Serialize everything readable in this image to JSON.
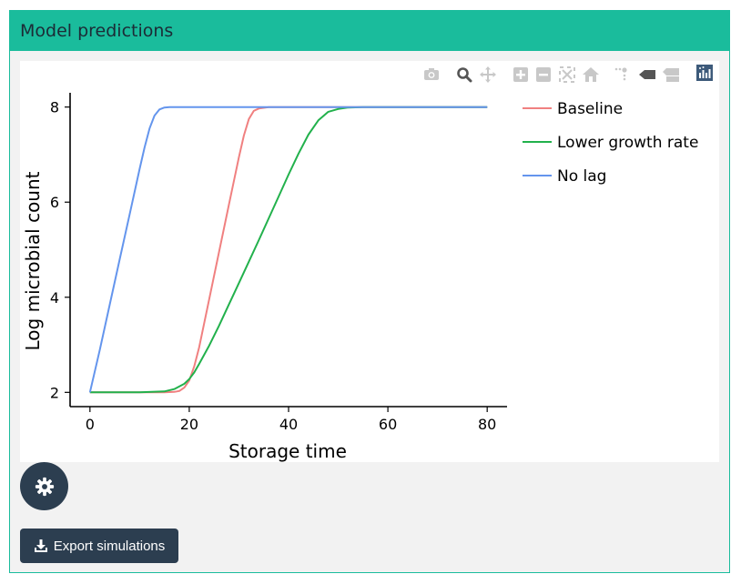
{
  "panel": {
    "title": "Model predictions",
    "header_color": "#1abc9c"
  },
  "modebar": {
    "icons": [
      "camera-icon",
      "zoom-icon",
      "pan-icon",
      "zoom-in-icon",
      "zoom-out-icon",
      "autoscale-icon",
      "reset-axes-icon",
      "spike-lines-icon",
      "hover-closest-icon",
      "hover-compare-icon",
      "plotly-logo-icon"
    ]
  },
  "buttons": {
    "settings_icon": "gear-icon",
    "export_label": "Export simulations",
    "export_icon": "download-icon"
  },
  "chart_data": {
    "type": "line",
    "title": "",
    "xlabel": "Storage time",
    "ylabel": "Log microbial count",
    "xlim": [
      -4,
      84
    ],
    "ylim": [
      1.7,
      8.3
    ],
    "xticks": [
      0,
      20,
      40,
      60,
      80
    ],
    "yticks": [
      2,
      4,
      6,
      8
    ],
    "grid": false,
    "legend_position": "right",
    "series": [
      {
        "name": "Baseline",
        "color": "#f08080",
        "x": [
          0,
          5,
          10,
          15,
          17,
          18,
          19,
          20,
          21,
          22,
          24,
          26,
          28,
          30,
          31,
          32,
          33,
          34,
          36,
          40,
          50,
          60,
          70,
          80
        ],
        "y": [
          2.0,
          2.0,
          2.0,
          2.0,
          2.01,
          2.03,
          2.1,
          2.25,
          2.55,
          2.95,
          3.95,
          4.95,
          5.95,
          6.95,
          7.4,
          7.75,
          7.92,
          7.97,
          8.0,
          8.0,
          8.0,
          8.0,
          8.0,
          8.0
        ]
      },
      {
        "name": "Lower growth rate",
        "color": "#22b14c",
        "x": [
          0,
          5,
          10,
          15,
          17,
          19,
          20,
          21,
          22,
          24,
          26,
          28,
          30,
          32,
          34,
          36,
          38,
          40,
          42,
          44,
          46,
          48,
          50,
          52,
          55,
          60,
          70,
          80
        ],
        "y": [
          2.0,
          2.0,
          2.0,
          2.02,
          2.07,
          2.18,
          2.28,
          2.42,
          2.6,
          2.98,
          3.4,
          3.85,
          4.3,
          4.75,
          5.2,
          5.66,
          6.12,
          6.58,
          7.02,
          7.42,
          7.72,
          7.9,
          7.96,
          7.99,
          8.0,
          8.0,
          8.0,
          8.0
        ]
      },
      {
        "name": "No lag",
        "color": "#6495ed",
        "x": [
          0,
          2,
          4,
          6,
          8,
          10,
          11,
          12,
          13,
          14,
          15,
          16,
          18,
          20,
          30,
          40,
          50,
          60,
          70,
          80
        ],
        "y": [
          2.0,
          2.9,
          3.85,
          4.8,
          5.75,
          6.7,
          7.15,
          7.55,
          7.82,
          7.95,
          7.99,
          8.0,
          8.0,
          8.0,
          8.0,
          8.0,
          8.0,
          8.0,
          8.0,
          8.0
        ]
      }
    ]
  }
}
